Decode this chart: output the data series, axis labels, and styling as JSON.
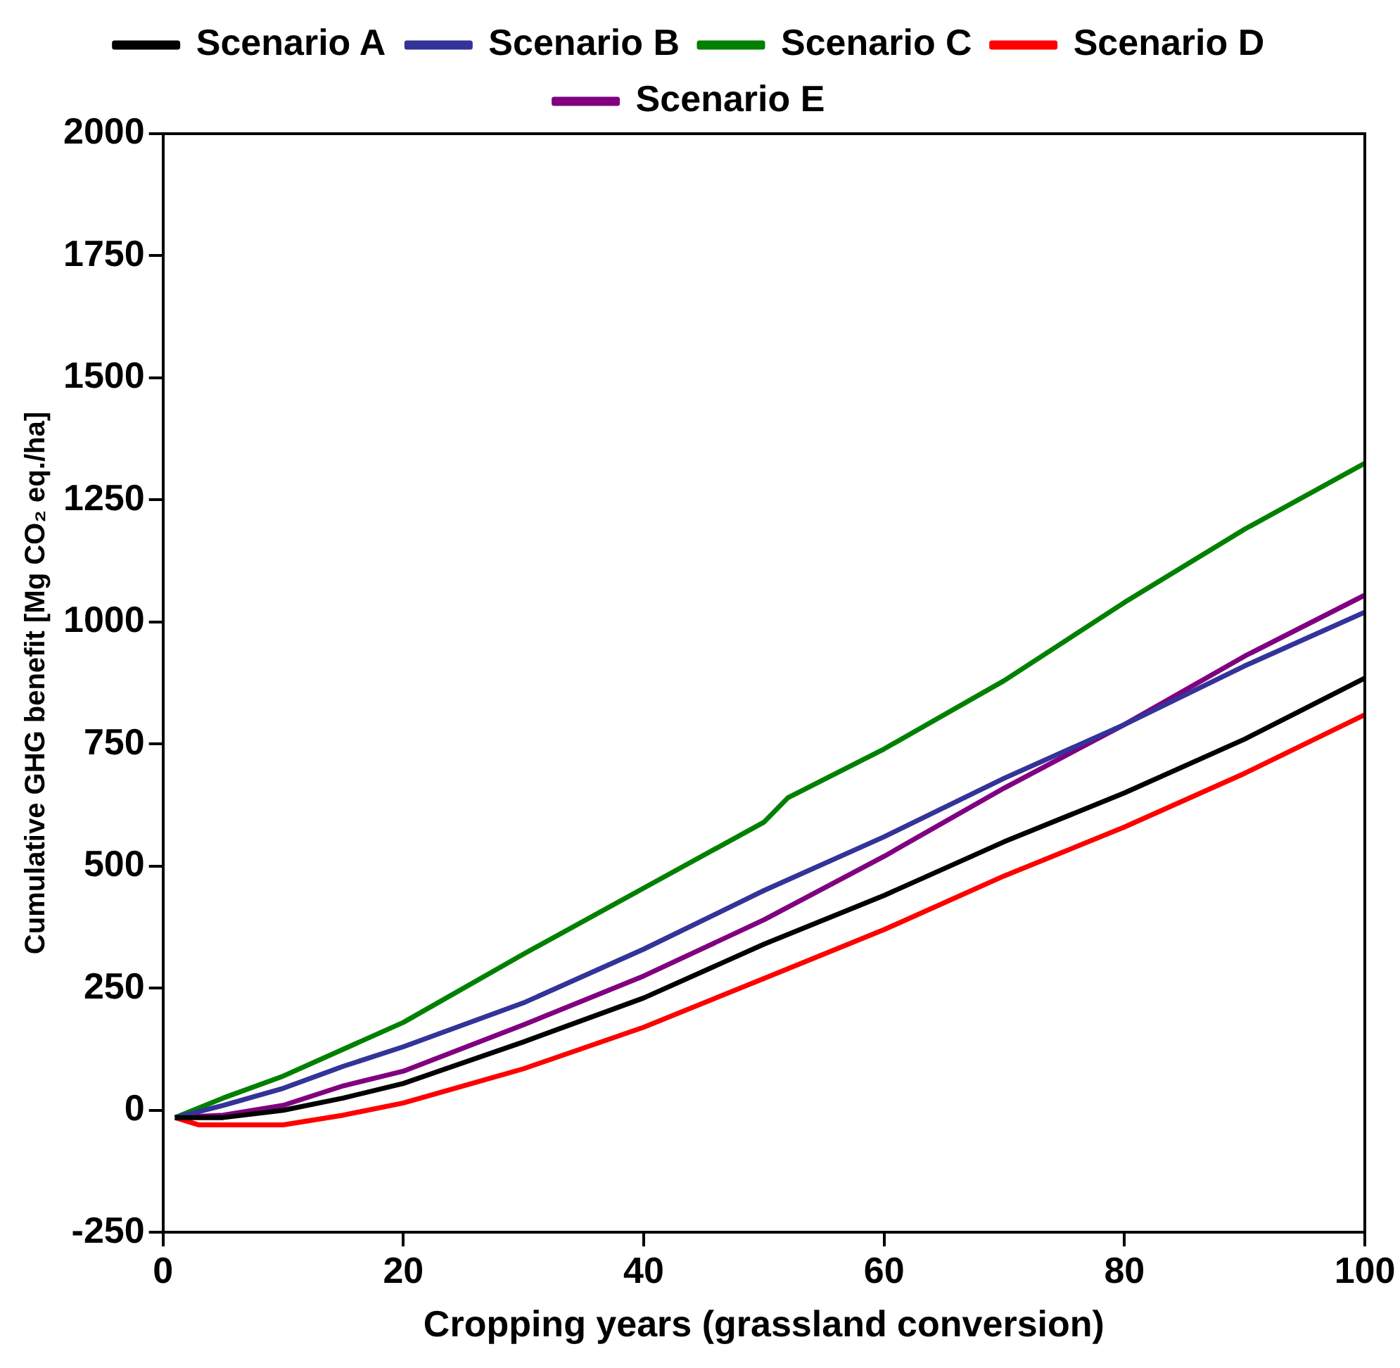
{
  "chart_data": {
    "type": "line",
    "xlabel": "Cropping years (grassland conversion)",
    "ylabel": "Cumulative GHG benefit [Mg CO₂ eq./ha]",
    "xlim": [
      0,
      100
    ],
    "xticks": [
      0,
      20,
      40,
      60,
      80,
      100
    ],
    "ylim": [
      -250,
      2000
    ],
    "yticks": [
      -250,
      0,
      250,
      500,
      750,
      1000,
      1250,
      1500,
      1750,
      2000
    ],
    "grid": false,
    "legend": "top",
    "marker": "none",
    "line_style": "solid",
    "series": [
      {
        "name": "Scenario A",
        "color": "#000000",
        "x": [
          1,
          5,
          10,
          15,
          20,
          30,
          40,
          50,
          60,
          70,
          80,
          90,
          100
        ],
        "values": [
          -15,
          -15,
          0,
          25,
          55,
          140,
          230,
          340,
          440,
          550,
          650,
          760,
          885
        ]
      },
      {
        "name": "Scenario B",
        "color": "#333399",
        "x": [
          1,
          5,
          10,
          15,
          20,
          30,
          40,
          50,
          60,
          70,
          80,
          90,
          100
        ],
        "values": [
          -15,
          10,
          45,
          90,
          130,
          220,
          330,
          450,
          560,
          680,
          790,
          910,
          1020
        ]
      },
      {
        "name": "Scenario C",
        "color": "#008000",
        "x": [
          1,
          5,
          10,
          15,
          20,
          30,
          40,
          50,
          52,
          60,
          70,
          80,
          90,
          100
        ],
        "values": [
          -15,
          25,
          70,
          125,
          180,
          320,
          455,
          590,
          640,
          740,
          880,
          1040,
          1190,
          1325
        ]
      },
      {
        "name": "Scenario D",
        "color": "#ff0000",
        "x": [
          1,
          3,
          10,
          15,
          20,
          30,
          40,
          50,
          60,
          70,
          80,
          90,
          100
        ],
        "values": [
          -15,
          -30,
          -30,
          -10,
          15,
          85,
          170,
          270,
          370,
          480,
          580,
          690,
          810
        ]
      },
      {
        "name": "Scenario E",
        "color": "#800080",
        "x": [
          1,
          5,
          10,
          15,
          20,
          30,
          40,
          50,
          60,
          70,
          80,
          90,
          100
        ],
        "values": [
          -15,
          -10,
          10,
          50,
          80,
          175,
          275,
          390,
          520,
          660,
          790,
          930,
          1055
        ]
      }
    ]
  }
}
